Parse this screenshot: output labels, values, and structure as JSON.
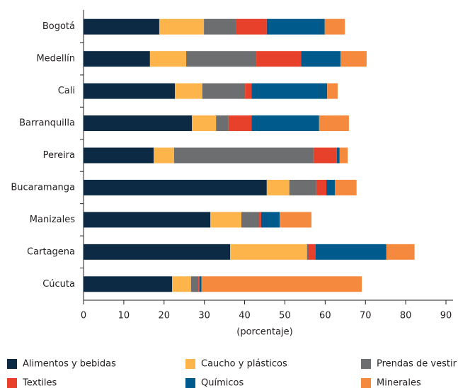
{
  "chart_data": {
    "type": "stacked-barh",
    "xlabel": "(porcentaje)",
    "categories": [
      "Bogotá",
      "Medellín",
      "Cali",
      "Barranquilla",
      "Pereira",
      "Bucaramanga",
      "Manizales",
      "Cartagena",
      "Cúcuta"
    ],
    "series": [
      {
        "name": "Alimentos y bebidas",
        "color": "#0c2a44",
        "values": [
          18.8,
          16.5,
          22.7,
          26.9,
          17.4,
          45.5,
          31.5,
          36.4,
          22.0
        ]
      },
      {
        "name": "Caucho y plásticos",
        "color": "#fdb44b",
        "values": [
          11.1,
          9.0,
          6.8,
          6.0,
          5.1,
          5.6,
          7.7,
          19.1,
          4.7
        ]
      },
      {
        "name": "Prendas de vestir",
        "color": "#6d6e70",
        "values": [
          7.9,
          17.4,
          10.6,
          3.1,
          34.6,
          6.7,
          4.4,
          0.4,
          1.8
        ]
      },
      {
        "name": "Textiles",
        "color": "#e8412b",
        "values": [
          7.7,
          11.1,
          1.6,
          5.7,
          5.8,
          2.5,
          0.5,
          1.7,
          0.3
        ]
      },
      {
        "name": "Químicos",
        "color": "#005b8c",
        "values": [
          14.4,
          9.8,
          18.8,
          16.8,
          0.7,
          2.1,
          4.6,
          17.6,
          0.5
        ]
      },
      {
        "name": "Minerales",
        "color": "#f58a3f",
        "values": [
          5.0,
          6.5,
          2.6,
          7.4,
          2.0,
          5.4,
          7.9,
          7.0,
          39.8
        ]
      }
    ],
    "xlim": [
      0,
      90
    ],
    "xticks": [
      0,
      10,
      20,
      30,
      40,
      50,
      60,
      70,
      80,
      90
    ]
  }
}
